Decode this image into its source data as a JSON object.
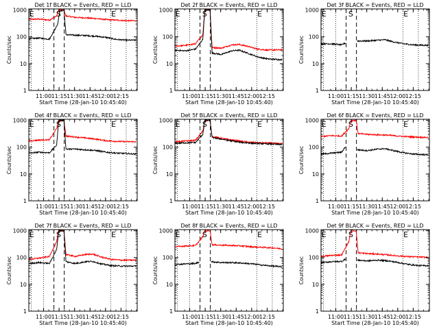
{
  "chart_data": {
    "type": "line",
    "ylabel": "Counts/sec",
    "xlabel": "Start Time (28-Jan-10 10:45:40)",
    "yscale": "log",
    "ylim": [
      1,
      1100
    ],
    "xlim": [
      0,
      105
    ],
    "x_tick_labels": [
      "11:00",
      "11:15",
      "11:30",
      "11:45",
      "12:00",
      "12:15"
    ],
    "x_tick_values": [
      14.33,
      29.33,
      44.33,
      59.33,
      74.33,
      89.33
    ],
    "y_tick_labels": [
      "1",
      "10",
      "100",
      "1000"
    ],
    "y_tick_values": [
      1,
      10,
      100,
      1000
    ],
    "marker_labels": {
      "start": "E",
      "saa": "S",
      "end": "E"
    },
    "dotted_lines_x": [
      2.33,
      14.33,
      79.33,
      94.33
    ],
    "dashed_lines_x": [
      24.33,
      34.33
    ],
    "series_legend": "BLACK = Events, RED = LLD",
    "colors": {
      "events": "#000000",
      "lld": "#ff0000"
    },
    "panels": [
      {
        "title": "Det 1f BLACK = Events, RED = LLD",
        "events": [
          [
            0,
            85
          ],
          [
            10,
            90
          ],
          [
            20,
            82
          ],
          [
            28,
            300
          ],
          [
            30,
            900
          ],
          [
            34,
            1000
          ],
          [
            36,
            120
          ],
          [
            45,
            115
          ],
          [
            55,
            112
          ],
          [
            65,
            105
          ],
          [
            75,
            95
          ],
          [
            85,
            80
          ],
          [
            95,
            75
          ],
          [
            104,
            75
          ]
        ],
        "lld": [
          [
            0,
            450
          ],
          [
            10,
            460
          ],
          [
            20,
            420
          ],
          [
            27,
            600
          ],
          [
            29,
            1000
          ],
          [
            34,
            1000
          ],
          [
            36,
            600
          ],
          [
            45,
            530
          ],
          [
            55,
            510
          ],
          [
            65,
            480
          ],
          [
            75,
            440
          ],
          [
            85,
            420
          ],
          [
            95,
            400
          ],
          [
            104,
            400
          ]
        ]
      },
      {
        "title": "Det 2f BLACK = Events, RED = LLD",
        "events": [
          [
            0,
            32
          ],
          [
            10,
            30
          ],
          [
            20,
            35
          ],
          [
            27,
            80
          ],
          [
            29,
            1000
          ],
          [
            34,
            1000
          ],
          [
            36,
            25
          ],
          [
            45,
            22
          ],
          [
            55,
            30
          ],
          [
            62,
            32
          ],
          [
            70,
            25
          ],
          [
            80,
            18
          ],
          [
            90,
            15
          ],
          [
            104,
            14
          ]
        ],
        "lld": [
          [
            0,
            45
          ],
          [
            10,
            48
          ],
          [
            20,
            55
          ],
          [
            27,
            120
          ],
          [
            29,
            1000
          ],
          [
            34,
            1000
          ],
          [
            36,
            40
          ],
          [
            45,
            38
          ],
          [
            55,
            50
          ],
          [
            62,
            52
          ],
          [
            70,
            45
          ],
          [
            80,
            35
          ],
          [
            90,
            32
          ],
          [
            104,
            33
          ]
        ]
      },
      {
        "title": "Det 3f BLACK = Events, RED = LLD",
        "events": [
          [
            0,
            55
          ],
          [
            10,
            55
          ],
          [
            20,
            50
          ],
          [
            24,
            60
          ],
          [
            28,
            null
          ],
          [
            34,
            null
          ],
          [
            35,
            70
          ],
          [
            45,
            70
          ],
          [
            55,
            75
          ],
          [
            62,
            78
          ],
          [
            70,
            65
          ],
          [
            80,
            55
          ],
          [
            90,
            50
          ],
          [
            104,
            48
          ]
        ],
        "lld": []
      },
      {
        "title": "Det 4f BLACK = Events, RED = LLD",
        "events": [
          [
            0,
            60
          ],
          [
            10,
            65
          ],
          [
            20,
            62
          ],
          [
            27,
            120
          ],
          [
            29,
            1000
          ],
          [
            34,
            1000
          ],
          [
            36,
            85
          ],
          [
            45,
            85
          ],
          [
            55,
            80
          ],
          [
            65,
            75
          ],
          [
            75,
            65
          ],
          [
            85,
            60
          ],
          [
            95,
            58
          ],
          [
            104,
            55
          ]
        ],
        "lld": [
          [
            0,
            170
          ],
          [
            10,
            185
          ],
          [
            20,
            190
          ],
          [
            27,
            500
          ],
          [
            29,
            1000
          ],
          [
            34,
            1000
          ],
          [
            36,
            260
          ],
          [
            45,
            240
          ],
          [
            55,
            220
          ],
          [
            65,
            200
          ],
          [
            75,
            175
          ],
          [
            85,
            165
          ],
          [
            95,
            160
          ],
          [
            104,
            160
          ]
        ]
      },
      {
        "title": "Det 5f BLACK = Events, RED = LLD",
        "events": [
          [
            0,
            140
          ],
          [
            10,
            145
          ],
          [
            20,
            150
          ],
          [
            27,
            300
          ],
          [
            29,
            1000
          ],
          [
            34,
            1000
          ],
          [
            36,
            230
          ],
          [
            45,
            200
          ],
          [
            55,
            170
          ],
          [
            65,
            150
          ],
          [
            75,
            140
          ],
          [
            85,
            135
          ],
          [
            95,
            130
          ],
          [
            104,
            125
          ]
        ],
        "lld": [
          [
            0,
            160
          ],
          [
            10,
            170
          ],
          [
            20,
            180
          ],
          [
            27,
            400
          ],
          [
            29,
            1000
          ],
          [
            34,
            1000
          ],
          [
            36,
            250
          ],
          [
            45,
            215
          ],
          [
            55,
            185
          ],
          [
            65,
            165
          ],
          [
            75,
            150
          ],
          [
            85,
            145
          ],
          [
            95,
            140
          ],
          [
            104,
            135
          ]
        ]
      },
      {
        "title": "Det 6f BLACK = Events, RED = LLD",
        "events": [
          [
            0,
            55
          ],
          [
            10,
            60
          ],
          [
            20,
            65
          ],
          [
            24,
            110
          ],
          [
            28,
            null
          ],
          [
            34,
            null
          ],
          [
            35,
            80
          ],
          [
            45,
            75
          ],
          [
            55,
            85
          ],
          [
            62,
            88
          ],
          [
            70,
            75
          ],
          [
            80,
            62
          ],
          [
            90,
            55
          ],
          [
            104,
            52
          ]
        ],
        "lld": [
          [
            0,
            250
          ],
          [
            10,
            270
          ],
          [
            20,
            260
          ],
          [
            27,
            500
          ],
          [
            29,
            1000
          ],
          [
            34,
            1000
          ],
          [
            36,
            320
          ],
          [
            45,
            300
          ],
          [
            55,
            290
          ],
          [
            65,
            280
          ],
          [
            75,
            260
          ],
          [
            85,
            245
          ],
          [
            95,
            235
          ],
          [
            104,
            230
          ]
        ]
      },
      {
        "title": "Det 7f BLACK = Events, RED = LLD",
        "events": [
          [
            0,
            60
          ],
          [
            10,
            65
          ],
          [
            20,
            60
          ],
          [
            27,
            200
          ],
          [
            29,
            1000
          ],
          [
            34,
            1000
          ],
          [
            36,
            70
          ],
          [
            45,
            60
          ],
          [
            55,
            70
          ],
          [
            62,
            72
          ],
          [
            70,
            58
          ],
          [
            80,
            50
          ],
          [
            90,
            48
          ],
          [
            104,
            48
          ]
        ],
        "lld": [
          [
            0,
            85
          ],
          [
            10,
            95
          ],
          [
            20,
            110
          ],
          [
            27,
            400
          ],
          [
            29,
            1000
          ],
          [
            34,
            1000
          ],
          [
            36,
            130
          ],
          [
            45,
            110
          ],
          [
            55,
            130
          ],
          [
            62,
            135
          ],
          [
            70,
            105
          ],
          [
            80,
            85
          ],
          [
            90,
            80
          ],
          [
            104,
            80
          ]
        ]
      },
      {
        "title": "Det 8f BLACK = Events, RED = LLD",
        "events": [
          [
            0,
            55
          ],
          [
            10,
            58
          ],
          [
            20,
            60
          ],
          [
            24,
            70
          ],
          [
            28,
            null
          ],
          [
            34,
            null
          ],
          [
            35,
            70
          ],
          [
            45,
            65
          ],
          [
            55,
            65
          ],
          [
            65,
            62
          ],
          [
            75,
            58
          ],
          [
            85,
            52
          ],
          [
            95,
            48
          ],
          [
            104,
            45
          ]
        ],
        "lld": [
          [
            0,
            250
          ],
          [
            10,
            270
          ],
          [
            20,
            280
          ],
          [
            27,
            600
          ],
          [
            29,
            1000
          ],
          [
            34,
            1000
          ],
          [
            36,
            300
          ],
          [
            45,
            290
          ],
          [
            55,
            280
          ],
          [
            65,
            270
          ],
          [
            75,
            250
          ],
          [
            85,
            240
          ],
          [
            95,
            230
          ],
          [
            104,
            210
          ]
        ]
      },
      {
        "title": "Det 9f BLACK = Events, RED = LLD",
        "events": [
          [
            0,
            65
          ],
          [
            10,
            70
          ],
          [
            20,
            72
          ],
          [
            24,
            90
          ],
          [
            28,
            null
          ],
          [
            34,
            null
          ],
          [
            35,
            80
          ],
          [
            45,
            75
          ],
          [
            55,
            80
          ],
          [
            65,
            75
          ],
          [
            75,
            65
          ],
          [
            85,
            55
          ],
          [
            95,
            50
          ],
          [
            104,
            50
          ]
        ],
        "lld": [
          [
            0,
            110
          ],
          [
            10,
            120
          ],
          [
            20,
            125
          ],
          [
            27,
            400
          ],
          [
            29,
            1000
          ],
          [
            34,
            1000
          ],
          [
            36,
            150
          ],
          [
            45,
            140
          ],
          [
            55,
            135
          ],
          [
            65,
            125
          ],
          [
            75,
            115
          ],
          [
            85,
            108
          ],
          [
            95,
            105
          ],
          [
            104,
            100
          ]
        ]
      }
    ]
  }
}
